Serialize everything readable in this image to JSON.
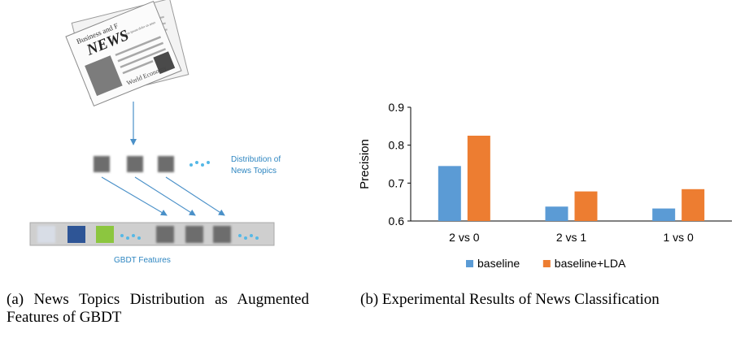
{
  "figure_a": {
    "newspaper": {
      "headline": "NEWS",
      "top_text": "Business and F",
      "sub_text": "Lorem ipsum dolor sit amet",
      "footer_text": "World Economy"
    },
    "distribution_label_line1": "Distribution of",
    "distribution_label_line2": "News Topics",
    "gbdt_label": "GBDT Features",
    "ellipsis": "...",
    "colors": {
      "arrow": "#4a90c8",
      "label": "#2e86c1",
      "dots": "#55b8e6",
      "gray_block": "#6d6d6d",
      "light_block": "#d8dde6",
      "navy_block": "#2e5596",
      "green_block": "#8cc63f",
      "feature_bar": "#c9c9c9"
    },
    "caption": "(a) News Topics Distribution as Augmented Features of GBDT"
  },
  "chart_data": {
    "type": "bar",
    "categories": [
      "2 vs 0",
      "2 vs 1",
      "1 vs 0"
    ],
    "series": [
      {
        "name": "baseline",
        "values": [
          0.745,
          0.638,
          0.633
        ],
        "color": "#5b9bd5"
      },
      {
        "name": "baseline+LDA",
        "values": [
          0.825,
          0.678,
          0.684
        ],
        "color": "#ed7d31"
      }
    ],
    "title": "",
    "xlabel": "",
    "ylabel": "Precision",
    "ylim": [
      0.6,
      0.9
    ],
    "yticks": [
      "0.6",
      "0.7",
      "0.8",
      "0.9"
    ],
    "grid": false,
    "legend_position": "bottom"
  },
  "caption_b": "(b) Experimental Results of News Classification"
}
